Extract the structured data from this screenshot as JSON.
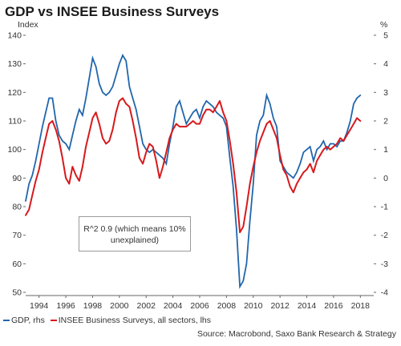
{
  "title": "GDP vs INSEE Business Surveys",
  "chart_data": {
    "type": "line",
    "title": "GDP vs INSEE Business Surveys",
    "left_axis": {
      "label": "Index",
      "ylim": [
        50,
        140
      ],
      "ticks": [
        "50",
        "60",
        "70",
        "80",
        "90",
        "100",
        "110",
        "120",
        "130",
        "140"
      ]
    },
    "right_axis": {
      "label": "%",
      "ylim": [
        -4,
        5
      ],
      "ticks": [
        "-4",
        "-3",
        "-2",
        "-1",
        "0",
        "1",
        "2",
        "3",
        "4",
        "5"
      ]
    },
    "x_ticks": [
      "1994",
      "1996",
      "1998",
      "2000",
      "2002",
      "2004",
      "2006",
      "2008",
      "2010",
      "2012",
      "2014",
      "2016",
      "2018"
    ],
    "xlim": [
      1993.0,
      2019.0
    ],
    "grid": false,
    "legend_placement": "bottom-left",
    "annotation": "R^2 0.9 (which means 10% unexplained)",
    "source": "Source: Macrobond, Saxo Bank Research & Strategy",
    "series": [
      {
        "name": "GDP, rhs",
        "axis": "right",
        "color": "#2166ac",
        "x": [
          1993.0,
          1993.25,
          1993.5,
          1993.75,
          1994.0,
          1994.25,
          1994.5,
          1994.75,
          1995.0,
          1995.25,
          1995.5,
          1995.75,
          1996.0,
          1996.25,
          1996.5,
          1996.75,
          1997.0,
          1997.25,
          1997.5,
          1997.75,
          1998.0,
          1998.25,
          1998.5,
          1998.75,
          1999.0,
          1999.25,
          1999.5,
          1999.75,
          2000.0,
          2000.25,
          2000.5,
          2000.75,
          2001.0,
          2001.25,
          2001.5,
          2001.75,
          2002.0,
          2002.25,
          2002.5,
          2002.75,
          2003.0,
          2003.25,
          2003.5,
          2003.75,
          2004.0,
          2004.25,
          2004.5,
          2004.75,
          2005.0,
          2005.25,
          2005.5,
          2005.75,
          2006.0,
          2006.25,
          2006.5,
          2006.75,
          2007.0,
          2007.25,
          2007.5,
          2007.75,
          2008.0,
          2008.25,
          2008.5,
          2008.75,
          2009.0,
          2009.25,
          2009.5,
          2009.75,
          2010.0,
          2010.25,
          2010.5,
          2010.75,
          2011.0,
          2011.25,
          2011.5,
          2011.75,
          2012.0,
          2012.25,
          2012.5,
          2012.75,
          2013.0,
          2013.25,
          2013.5,
          2013.75,
          2014.0,
          2014.25,
          2014.5,
          2014.75,
          2015.0,
          2015.25,
          2015.5,
          2015.75,
          2016.0,
          2016.25,
          2016.5,
          2016.75,
          2017.0,
          2017.25,
          2017.5,
          2017.75,
          2018.0
        ],
        "y": [
          -0.8,
          -0.2,
          0.1,
          0.6,
          1.2,
          1.8,
          2.3,
          2.8,
          2.8,
          2.0,
          1.5,
          1.3,
          1.2,
          1.0,
          1.5,
          2.0,
          2.4,
          2.2,
          2.8,
          3.5,
          4.2,
          3.9,
          3.3,
          3.0,
          2.9,
          3.0,
          3.2,
          3.6,
          4.0,
          4.3,
          4.1,
          3.2,
          2.8,
          2.4,
          1.8,
          1.2,
          1.0,
          0.9,
          1.0,
          0.9,
          0.8,
          0.7,
          0.5,
          1.2,
          1.8,
          2.5,
          2.7,
          2.3,
          1.9,
          2.1,
          2.3,
          2.4,
          2.1,
          2.5,
          2.7,
          2.6,
          2.5,
          2.3,
          2.2,
          2.1,
          1.8,
          0.7,
          -0.3,
          -1.8,
          -3.8,
          -3.6,
          -3.0,
          -1.5,
          -0.2,
          1.5,
          2.0,
          2.2,
          2.9,
          2.6,
          2.1,
          1.8,
          0.6,
          0.4,
          0.2,
          0.1,
          0.0,
          0.2,
          0.5,
          0.9,
          1.0,
          1.1,
          0.6,
          1.0,
          1.1,
          1.3,
          1.0,
          1.2,
          1.2,
          1.1,
          1.3,
          1.3,
          1.6,
          2.0,
          2.6,
          2.8,
          2.9
        ]
      },
      {
        "name": "INSEE Business Surveys, all sectors, lhs",
        "axis": "left",
        "color": "#d7191c",
        "x": [
          1993.0,
          1993.25,
          1993.5,
          1993.75,
          1994.0,
          1994.25,
          1994.5,
          1994.75,
          1995.0,
          1995.25,
          1995.5,
          1995.75,
          1996.0,
          1996.25,
          1996.5,
          1996.75,
          1997.0,
          1997.25,
          1997.5,
          1997.75,
          1998.0,
          1998.25,
          1998.5,
          1998.75,
          1999.0,
          1999.25,
          1999.5,
          1999.75,
          2000.0,
          2000.25,
          2000.5,
          2000.75,
          2001.0,
          2001.25,
          2001.5,
          2001.75,
          2002.0,
          2002.25,
          2002.5,
          2002.75,
          2003.0,
          2003.25,
          2003.5,
          2003.75,
          2004.0,
          2004.25,
          2004.5,
          2004.75,
          2005.0,
          2005.25,
          2005.5,
          2005.75,
          2006.0,
          2006.25,
          2006.5,
          2006.75,
          2007.0,
          2007.25,
          2007.5,
          2007.75,
          2008.0,
          2008.25,
          2008.5,
          2008.75,
          2009.0,
          2009.25,
          2009.5,
          2009.75,
          2010.0,
          2010.25,
          2010.5,
          2010.75,
          2011.0,
          2011.25,
          2011.5,
          2011.75,
          2012.0,
          2012.25,
          2012.5,
          2012.75,
          2013.0,
          2013.25,
          2013.5,
          2013.75,
          2014.0,
          2014.25,
          2014.5,
          2014.75,
          2015.0,
          2015.25,
          2015.5,
          2015.75,
          2016.0,
          2016.25,
          2016.5,
          2016.75,
          2017.0,
          2017.25,
          2017.5,
          2017.75,
          2018.0
        ],
        "y": [
          77,
          79,
          84,
          89,
          93,
          99,
          104,
          109,
          110,
          107,
          103,
          97,
          90,
          88,
          94,
          91,
          89,
          94,
          101,
          106,
          111,
          113,
          109,
          104,
          102,
          103,
          107,
          113,
          117,
          118,
          116,
          115,
          110,
          104,
          97,
          95,
          99,
          102,
          101,
          96,
          90,
          94,
          99,
          104,
          107,
          109,
          108,
          108,
          108,
          109,
          110,
          109,
          109,
          112,
          114,
          114,
          113,
          115,
          117,
          113,
          110,
          103,
          95,
          85,
          71,
          73,
          80,
          88,
          94,
          99,
          103,
          106,
          109,
          110,
          107,
          104,
          98,
          93,
          91,
          87,
          85,
          88,
          90,
          92,
          93,
          95,
          92,
          96,
          98,
          100,
          101,
          100,
          101,
          102,
          104,
          103,
          105,
          107,
          109,
          111,
          110
        ]
      }
    ]
  }
}
